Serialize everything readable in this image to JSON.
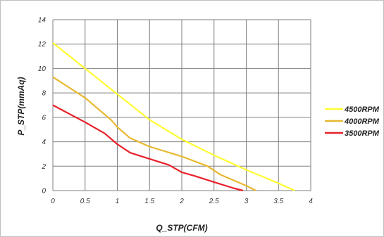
{
  "chart_data": {
    "type": "line",
    "title": "",
    "xlabel": "Q_STP(CFM)",
    "ylabel": "P_STP(mmAq)",
    "xlim": [
      0,
      4
    ],
    "ylim": [
      0,
      14
    ],
    "x_ticks": [
      "0",
      "0.5",
      "1",
      "1.5",
      "2",
      "2.5",
      "3",
      "3.5",
      "4"
    ],
    "y_ticks": [
      "0",
      "2",
      "4",
      "6",
      "8",
      "10",
      "12",
      "14"
    ],
    "grid": true,
    "legend_position": "right",
    "series": [
      {
        "name": "4500RPM",
        "color": "#ffff33",
        "points": [
          [
            0,
            12.1
          ],
          [
            0.5,
            10.0
          ],
          [
            1.0,
            7.9
          ],
          [
            1.5,
            5.8
          ],
          [
            2.0,
            4.2
          ],
          [
            2.5,
            2.9
          ],
          [
            3.0,
            1.7
          ],
          [
            3.5,
            0.6
          ],
          [
            3.75,
            0.0
          ]
        ]
      },
      {
        "name": "4000RPM",
        "color": "#e8b830",
        "points": [
          [
            0,
            9.3
          ],
          [
            0.5,
            7.6
          ],
          [
            0.9,
            5.8
          ],
          [
            1.0,
            5.2
          ],
          [
            1.2,
            4.3
          ],
          [
            1.5,
            3.6
          ],
          [
            2.0,
            2.8
          ],
          [
            2.4,
            2.0
          ],
          [
            2.6,
            1.3
          ],
          [
            3.0,
            0.4
          ],
          [
            3.15,
            0.0
          ]
        ]
      },
      {
        "name": "3500RPM",
        "color": "#e8202a",
        "points": [
          [
            0,
            7.0
          ],
          [
            0.5,
            5.6
          ],
          [
            0.8,
            4.7
          ],
          [
            1.0,
            3.8
          ],
          [
            1.2,
            3.1
          ],
          [
            1.5,
            2.6
          ],
          [
            1.8,
            2.1
          ],
          [
            2.0,
            1.5
          ],
          [
            2.2,
            1.2
          ],
          [
            2.5,
            0.7
          ],
          [
            2.8,
            0.2
          ],
          [
            2.95,
            0.0
          ]
        ]
      }
    ]
  }
}
